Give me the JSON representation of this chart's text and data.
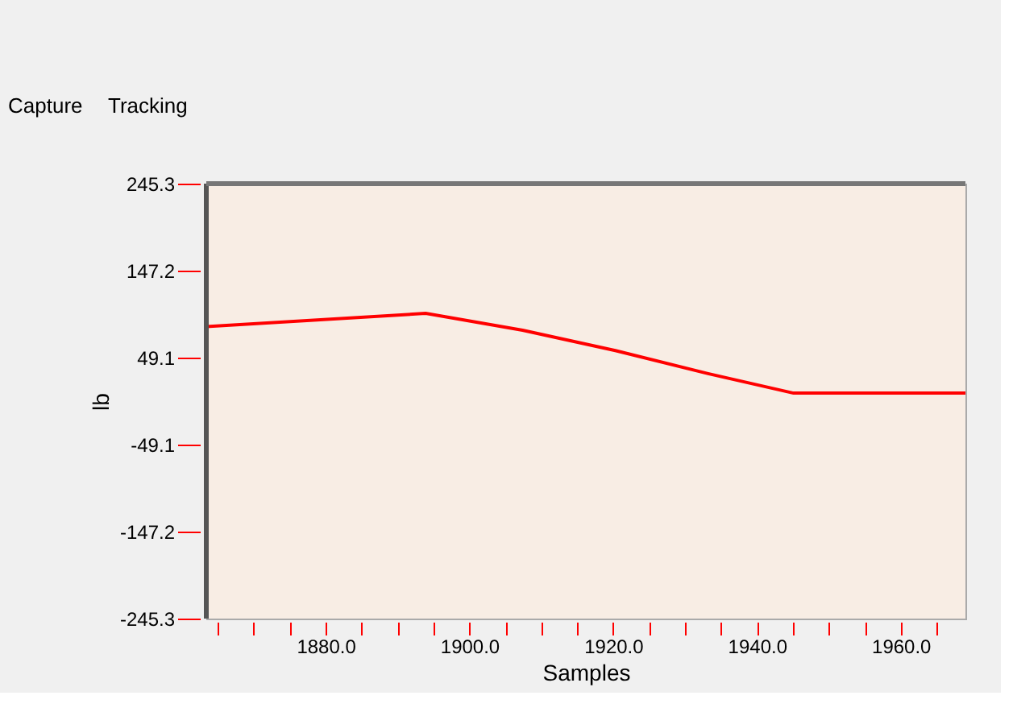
{
  "chart_data": {
    "type": "line",
    "xlabel": "Samples",
    "ylabel": "lb",
    "annotations": [
      "Capture",
      "Tracking"
    ],
    "x": [
      1863.4,
      1893.9,
      1907.4,
      1920.3,
      1933.2,
      1945.1,
      1969.0
    ],
    "series": [
      {
        "color": "#ff0000",
        "values": [
          84,
          99,
          80,
          57,
          31,
          9,
          9
        ]
      }
    ],
    "xlim": [
      1863.4,
      1969.0
    ],
    "xticks": [
      {
        "value": 1865,
        "label": null
      },
      {
        "value": 1870,
        "label": null
      },
      {
        "value": 1875,
        "label": null
      },
      {
        "value": 1880,
        "label": "1880.0"
      },
      {
        "value": 1885,
        "label": null
      },
      {
        "value": 1890,
        "label": null
      },
      {
        "value": 1895,
        "label": null
      },
      {
        "value": 1900,
        "label": "1900.0"
      },
      {
        "value": 1905,
        "label": null
      },
      {
        "value": 1910,
        "label": null
      },
      {
        "value": 1915,
        "label": null
      },
      {
        "value": 1920,
        "label": "1920.0"
      },
      {
        "value": 1925,
        "label": null
      },
      {
        "value": 1930,
        "label": null
      },
      {
        "value": 1935,
        "label": null
      },
      {
        "value": 1940,
        "label": "1940.0"
      },
      {
        "value": 1945,
        "label": null
      },
      {
        "value": 1950,
        "label": null
      },
      {
        "value": 1955,
        "label": null
      },
      {
        "value": 1960,
        "label": "1960.0"
      },
      {
        "value": 1965,
        "label": null
      }
    ],
    "ylim": [
      -245.3,
      245.3
    ],
    "yticks": [
      -245.3,
      -147.2,
      -49.1,
      49.1,
      147.2,
      245.3
    ],
    "grid": false,
    "marker": "none",
    "line_style": "solid"
  }
}
